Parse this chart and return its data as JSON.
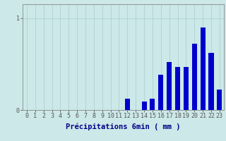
{
  "categories": [
    0,
    1,
    2,
    3,
    4,
    5,
    6,
    7,
    8,
    9,
    10,
    11,
    12,
    13,
    14,
    15,
    16,
    17,
    18,
    19,
    20,
    21,
    22,
    23
  ],
  "values": [
    0,
    0,
    0,
    0,
    0,
    0,
    0,
    0,
    0,
    0,
    0,
    0,
    0.12,
    0,
    0.09,
    0.12,
    0.38,
    0.52,
    0.47,
    0.47,
    0.72,
    0.9,
    0.62,
    0.22
  ],
  "bar_color": "#0000cc",
  "bg_color": "#cce8e8",
  "grid_color": "#aacccc",
  "xlabel": "Précipitations 6min ( mm )",
  "ylim": [
    0,
    1.15
  ],
  "xlim": [
    -0.5,
    23.5
  ],
  "xlabel_fontsize": 7.5,
  "tick_fontsize": 6,
  "bar_width": 0.6
}
